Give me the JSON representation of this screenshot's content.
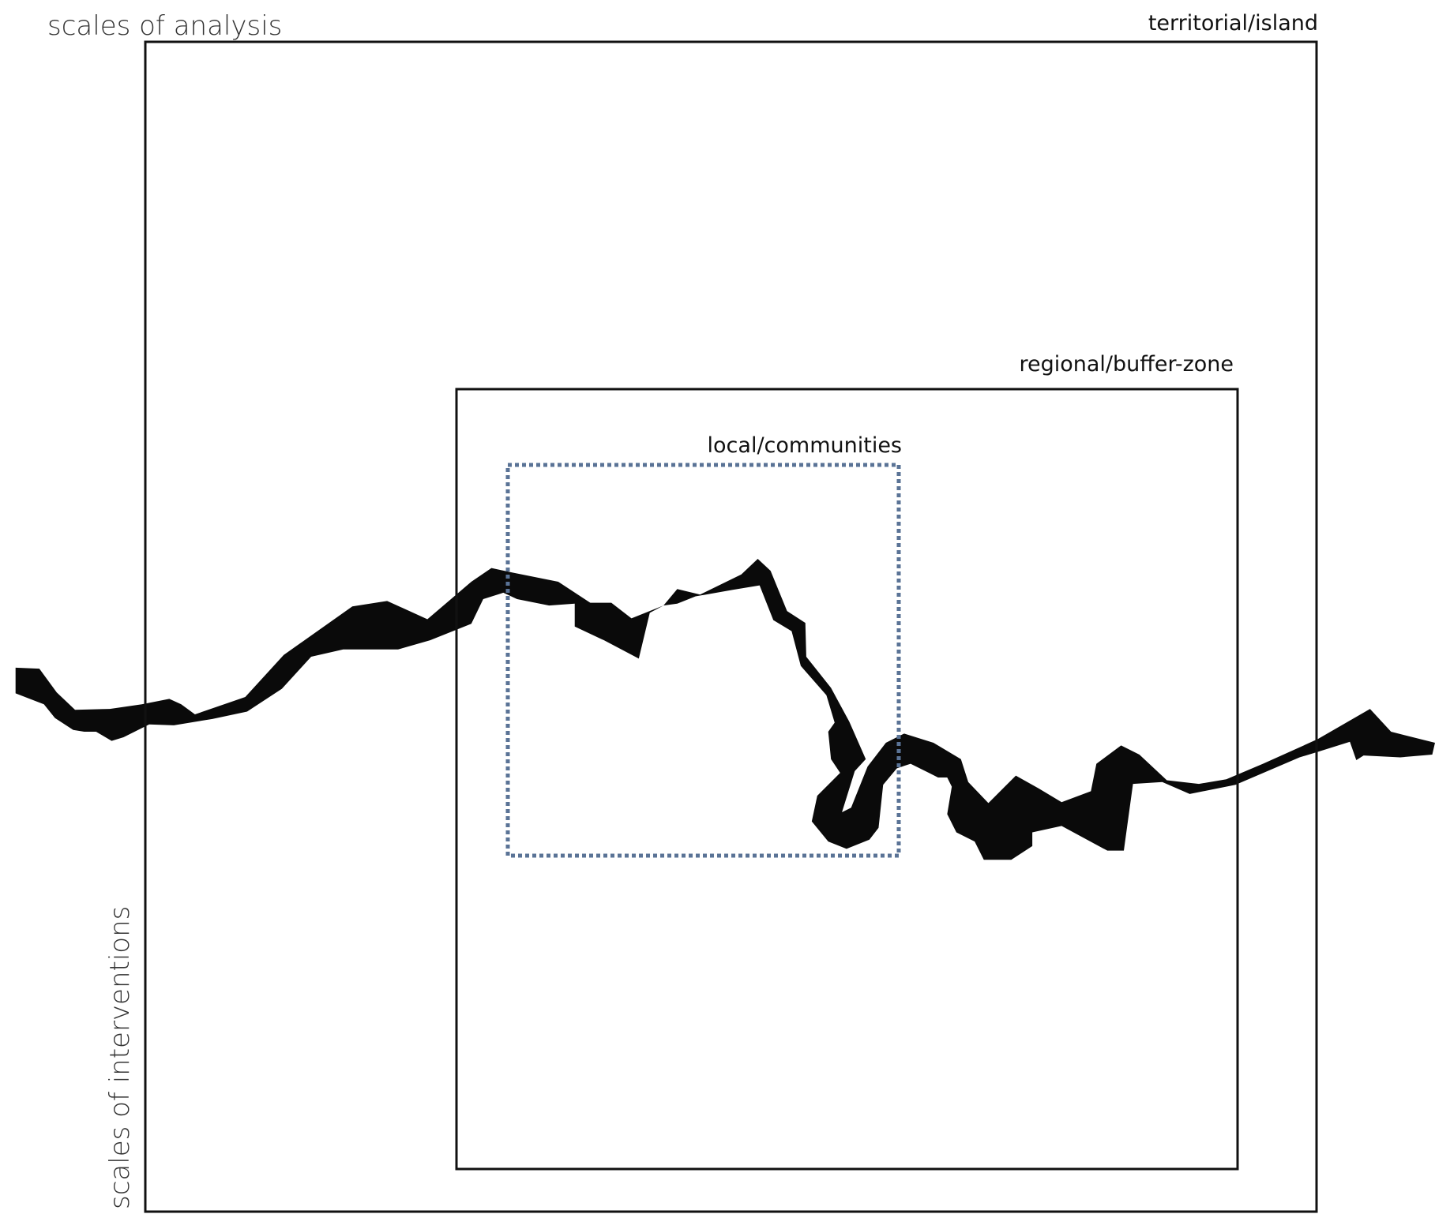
{
  "title": "scales of analysis",
  "side_label": "scales of interventions",
  "scales": [
    {
      "label": "territorial/island"
    },
    {
      "label": "regional/buffer-zone"
    },
    {
      "label": "local/communities"
    }
  ]
}
